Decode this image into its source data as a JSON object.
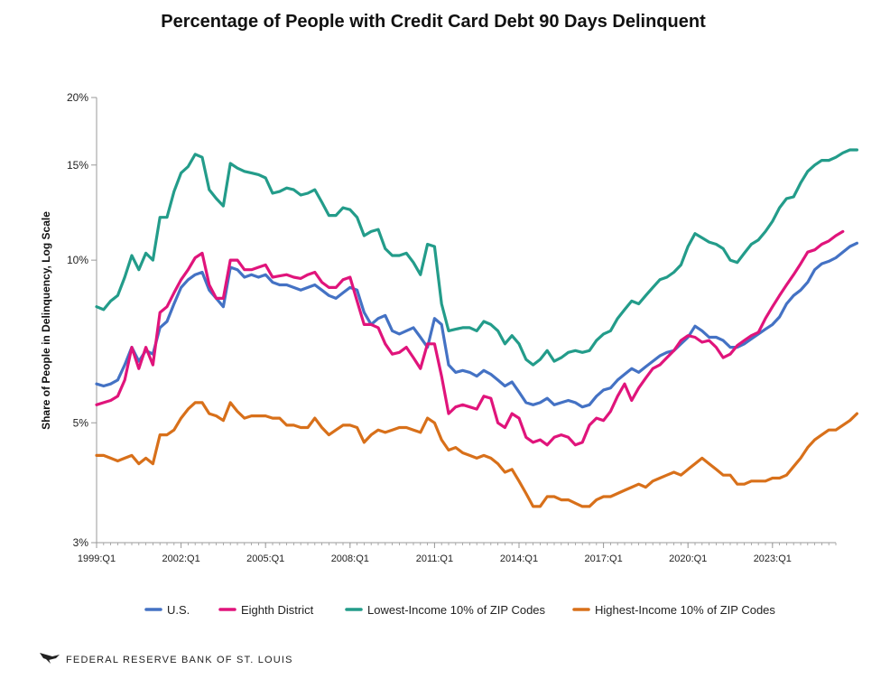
{
  "chart_data": {
    "type": "line",
    "title": "Percentage of People with Credit Card Debt 90 Days Delinquent",
    "ylabel": "Share of People in Delinquency, Log Scale",
    "xlabel": "",
    "y_scale": "log",
    "ylim": [
      3,
      20
    ],
    "y_ticks": [
      {
        "value": 3,
        "label": "3%"
      },
      {
        "value": 5,
        "label": "5%"
      },
      {
        "value": 10,
        "label": "10%"
      },
      {
        "value": 15,
        "label": "15%"
      },
      {
        "value": 20,
        "label": "20%"
      }
    ],
    "x_ticks": [
      "1999:Q1",
      "2002:Q1",
      "2005:Q1",
      "2008:Q1",
      "2011:Q1",
      "2014:Q1",
      "2017:Q1",
      "2020:Q1",
      "2023:Q1"
    ],
    "x_start": "1999:Q1",
    "x_end": "2025:Q2",
    "legend_position": "bottom",
    "grid": false,
    "series": [
      {
        "name": "U.S.",
        "color": "#4472C4",
        "values": [
          5.9,
          5.85,
          5.9,
          6.0,
          6.4,
          6.9,
          6.5,
          6.8,
          6.7,
          7.5,
          7.7,
          8.3,
          8.9,
          9.2,
          9.4,
          9.5,
          8.8,
          8.5,
          8.2,
          9.7,
          9.6,
          9.3,
          9.4,
          9.3,
          9.4,
          9.1,
          9.0,
          9.0,
          8.9,
          8.8,
          8.9,
          9.0,
          8.8,
          8.6,
          8.5,
          8.7,
          8.9,
          8.8,
          8.0,
          7.6,
          7.8,
          7.9,
          7.4,
          7.3,
          7.4,
          7.5,
          7.2,
          6.9,
          7.8,
          7.6,
          6.4,
          6.2,
          6.25,
          6.2,
          6.1,
          6.25,
          6.15,
          6.0,
          5.85,
          5.95,
          5.7,
          5.45,
          5.4,
          5.45,
          5.55,
          5.4,
          5.45,
          5.5,
          5.45,
          5.35,
          5.4,
          5.6,
          5.75,
          5.8,
          6.0,
          6.15,
          6.3,
          6.2,
          6.35,
          6.5,
          6.65,
          6.75,
          6.8,
          7.0,
          7.2,
          7.55,
          7.4,
          7.2,
          7.2,
          7.1,
          6.9,
          6.9,
          7.0,
          7.15,
          7.3,
          7.45,
          7.6,
          7.85,
          8.3,
          8.6,
          8.8,
          9.1,
          9.6,
          9.85,
          9.95,
          10.1,
          10.35,
          10.6,
          10.75
        ]
      },
      {
        "name": "Eighth District",
        "color": "#E0147B",
        "values": [
          5.4,
          5.45,
          5.5,
          5.6,
          6.0,
          6.9,
          6.3,
          6.9,
          6.4,
          8.0,
          8.2,
          8.7,
          9.2,
          9.6,
          10.1,
          10.3,
          9.0,
          8.5,
          8.5,
          10.0,
          10.0,
          9.6,
          9.6,
          9.7,
          9.8,
          9.3,
          9.35,
          9.4,
          9.3,
          9.25,
          9.4,
          9.5,
          9.1,
          8.9,
          8.9,
          9.2,
          9.3,
          8.4,
          7.6,
          7.6,
          7.5,
          7.0,
          6.7,
          6.75,
          6.9,
          6.6,
          6.3,
          7.0,
          7.0,
          6.1,
          5.2,
          5.35,
          5.4,
          5.35,
          5.3,
          5.6,
          5.55,
          5.0,
          4.9,
          5.2,
          5.1,
          4.7,
          4.6,
          4.65,
          4.55,
          4.7,
          4.75,
          4.7,
          4.55,
          4.6,
          4.95,
          5.1,
          5.05,
          5.25,
          5.6,
          5.9,
          5.5,
          5.8,
          6.05,
          6.3,
          6.4,
          6.6,
          6.8,
          7.1,
          7.25,
          7.2,
          7.05,
          7.1,
          6.9,
          6.6,
          6.7,
          6.95,
          7.1,
          7.25,
          7.35,
          7.8,
          8.2,
          8.6,
          9.0,
          9.4,
          9.85,
          10.35,
          10.45,
          10.7,
          10.85,
          11.1,
          11.3
        ]
      },
      {
        "name": "Lowest-Income 10% of ZIP Codes",
        "color": "#239C8A",
        "values": [
          8.2,
          8.1,
          8.4,
          8.6,
          9.3,
          10.2,
          9.6,
          10.3,
          10.0,
          12.0,
          12.0,
          13.4,
          14.5,
          14.9,
          15.7,
          15.5,
          13.5,
          13.0,
          12.6,
          15.1,
          14.8,
          14.6,
          14.5,
          14.4,
          14.2,
          13.3,
          13.4,
          13.6,
          13.5,
          13.2,
          13.3,
          13.5,
          12.8,
          12.1,
          12.1,
          12.5,
          12.4,
          12.0,
          11.1,
          11.3,
          11.4,
          10.5,
          10.2,
          10.2,
          10.3,
          9.9,
          9.4,
          10.7,
          10.6,
          8.3,
          7.4,
          7.45,
          7.5,
          7.5,
          7.4,
          7.7,
          7.6,
          7.4,
          7.0,
          7.25,
          7.0,
          6.55,
          6.4,
          6.55,
          6.8,
          6.5,
          6.6,
          6.75,
          6.8,
          6.75,
          6.8,
          7.1,
          7.3,
          7.4,
          7.8,
          8.1,
          8.4,
          8.3,
          8.6,
          8.9,
          9.2,
          9.3,
          9.5,
          9.8,
          10.6,
          11.2,
          11.0,
          10.8,
          10.7,
          10.5,
          10.0,
          9.9,
          10.3,
          10.7,
          10.9,
          11.3,
          11.8,
          12.5,
          13.0,
          13.1,
          13.9,
          14.6,
          15.0,
          15.3,
          15.3,
          15.5,
          15.8,
          16.0,
          16.0
        ]
      },
      {
        "name": "Highest-Income 10% of ZIP Codes",
        "color": "#D8701A",
        "values": [
          4.35,
          4.35,
          4.3,
          4.25,
          4.3,
          4.35,
          4.2,
          4.3,
          4.2,
          4.75,
          4.75,
          4.85,
          5.1,
          5.3,
          5.45,
          5.45,
          5.2,
          5.15,
          5.05,
          5.45,
          5.25,
          5.1,
          5.15,
          5.15,
          5.15,
          5.1,
          5.1,
          4.95,
          4.95,
          4.9,
          4.9,
          5.1,
          4.9,
          4.75,
          4.85,
          4.95,
          4.95,
          4.9,
          4.6,
          4.75,
          4.85,
          4.8,
          4.85,
          4.9,
          4.9,
          4.85,
          4.8,
          5.1,
          5.0,
          4.65,
          4.45,
          4.5,
          4.4,
          4.35,
          4.3,
          4.35,
          4.3,
          4.2,
          4.05,
          4.1,
          3.9,
          3.7,
          3.5,
          3.5,
          3.65,
          3.65,
          3.6,
          3.6,
          3.55,
          3.5,
          3.5,
          3.6,
          3.65,
          3.65,
          3.7,
          3.75,
          3.8,
          3.85,
          3.8,
          3.9,
          3.95,
          4.0,
          4.05,
          4.0,
          4.1,
          4.2,
          4.3,
          4.2,
          4.1,
          4.0,
          4.0,
          3.85,
          3.85,
          3.9,
          3.9,
          3.9,
          3.95,
          3.95,
          4.0,
          4.15,
          4.3,
          4.5,
          4.65,
          4.75,
          4.85,
          4.85,
          4.95,
          5.05,
          5.2
        ]
      }
    ]
  },
  "source": "FEDERAL RESERVE BANK OF ST. LOUIS"
}
